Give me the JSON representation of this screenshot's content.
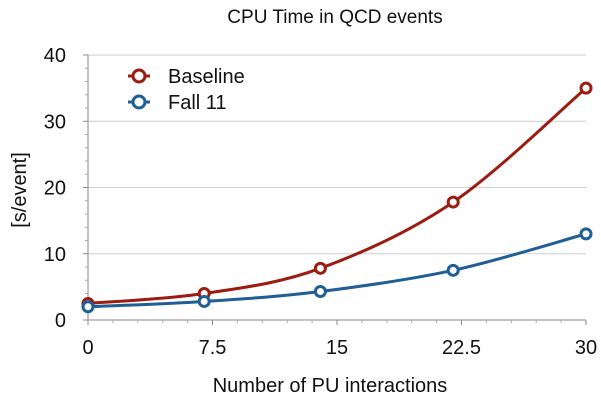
{
  "chart_data": {
    "type": "line",
    "title": "CPU Time in QCD events",
    "xlabel": "Number of PU interactions",
    "ylabel": "[s/event]",
    "xlim": [
      0,
      30
    ],
    "ylim": [
      0,
      40
    ],
    "x_ticks": [
      0,
      7.5,
      15,
      22.5,
      30
    ],
    "x_tick_labels": [
      "0",
      "7.5",
      "15",
      "22.5",
      "30"
    ],
    "y_ticks": [
      0,
      10,
      20,
      30,
      40
    ],
    "y_tick_labels": [
      "0",
      "10",
      "20",
      "30",
      "40"
    ],
    "grid": "horizontal",
    "legend": "top-left",
    "series": [
      {
        "name": "Baseline",
        "color": "#9b1c10",
        "x": [
          0,
          7,
          14,
          22,
          30
        ],
        "y": [
          2.5,
          4.0,
          7.8,
          17.8,
          35.0
        ]
      },
      {
        "name": "Fall 11",
        "color": "#1f5e96",
        "x": [
          0,
          7,
          14,
          22,
          30
        ],
        "y": [
          2.0,
          2.8,
          4.3,
          7.5,
          13.0
        ]
      }
    ]
  }
}
